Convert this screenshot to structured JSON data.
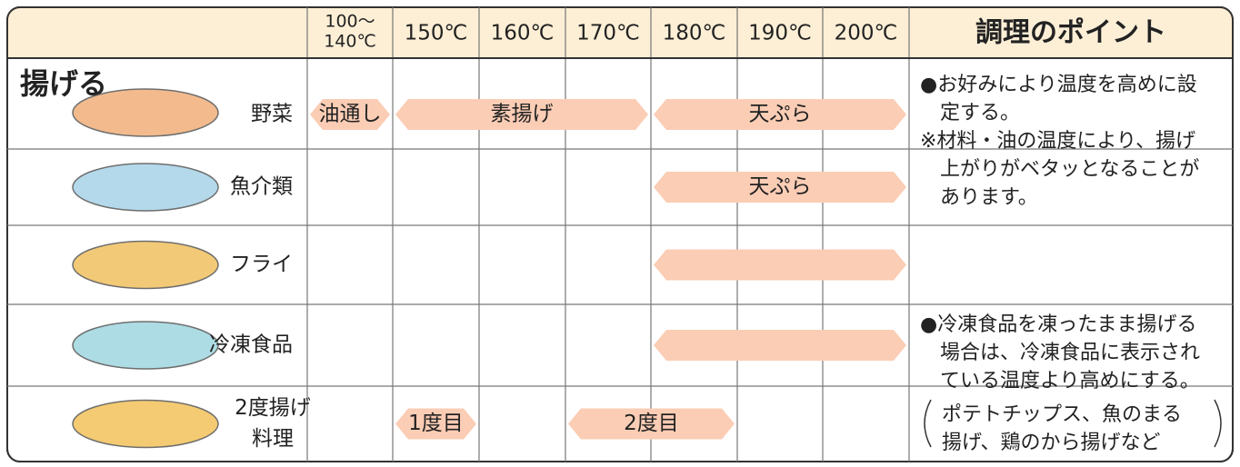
{
  "header": {
    "first_temperature": [
      "100〜",
      "140℃"
    ],
    "temperatures": [
      "150℃",
      "160℃",
      "170℃",
      "180℃",
      "190℃",
      "200℃"
    ],
    "tips_title": "調理のポイント"
  },
  "section_label": "揚げる",
  "rows": [
    {
      "name": [
        "野菜"
      ],
      "arrows": [
        {
          "label": "油通し"
        },
        {
          "label": "素揚げ"
        },
        {
          "label": "天ぷら"
        }
      ]
    },
    {
      "name": [
        "魚介類"
      ],
      "arrows": [
        {
          "label": "天ぷら"
        }
      ]
    },
    {
      "name": [
        "フライ"
      ]
    },
    {
      "name": [
        "冷凍食品"
      ]
    },
    {
      "name": [
        "2度揚げ",
        "料理"
      ],
      "arrows": [
        {
          "label": "1度目"
        },
        {
          "label": "2度目"
        }
      ]
    }
  ],
  "tips": [
    [
      "●お好みにより温度を高めに設",
      "　定する。",
      "※材料・油の温度により、揚げ",
      "　上がりがベタッとなることが",
      "　あります。"
    ],
    [
      "●冷凍食品を凍ったまま揚げる",
      "　場合は、冷凍食品に表示され",
      "　ている温度より高めにする。"
    ],
    [
      "ポテトチップス、魚のまる",
      "揚げ、鶏のから揚げなど"
    ]
  ]
}
